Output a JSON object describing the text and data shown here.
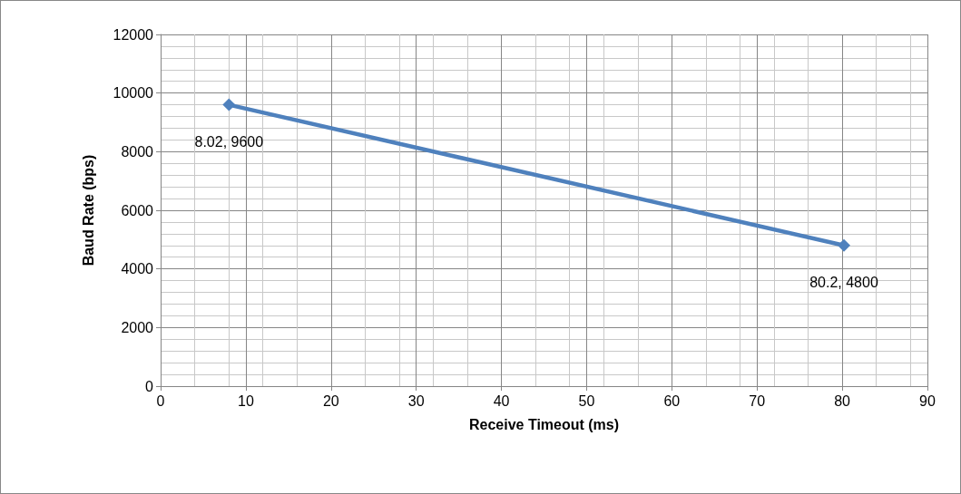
{
  "chart_data": {
    "type": "line",
    "xlabel": "Receive Timeout (ms)",
    "ylabel": "Baud Rate (bps)",
    "x": [
      8.02,
      80.2
    ],
    "series": [
      {
        "color": "#4f81bd",
        "values": [
          9600,
          4800
        ],
        "value_labels": [
          "8.02, 9600",
          "80.2, 4800"
        ]
      }
    ],
    "xlim": [
      0,
      90
    ],
    "xticks": [
      0,
      10,
      20,
      30,
      40,
      50,
      60,
      70,
      80,
      90
    ],
    "ylim": [
      0,
      12000
    ],
    "yticks": [
      0,
      2000,
      4000,
      6000,
      8000,
      10000,
      12000
    ],
    "grid": true,
    "marker": "diamond",
    "line_style": "solid"
  }
}
